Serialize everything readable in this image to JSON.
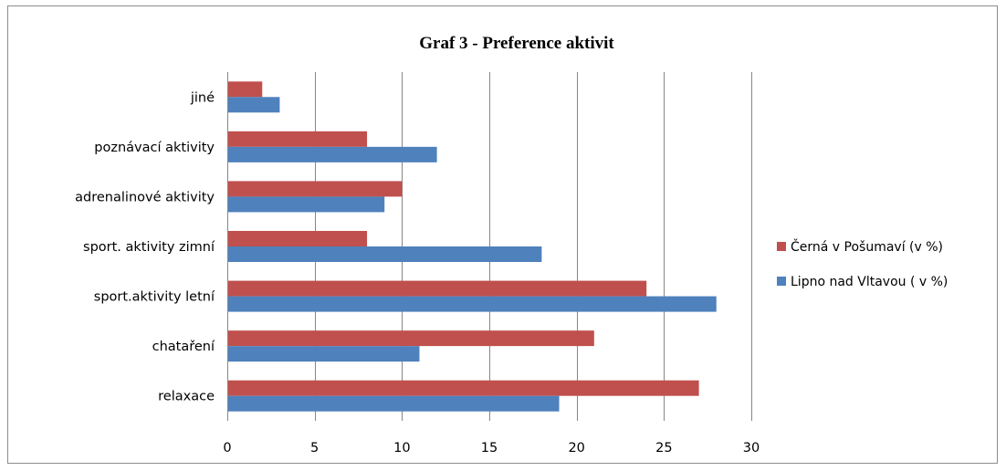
{
  "chart_data": {
    "type": "bar",
    "orientation": "horizontal",
    "title": "Graf 3 - Preference aktivit",
    "xlabel": "",
    "ylabel": "",
    "categories": [
      "relaxace",
      "chataření",
      "sport.aktivity letní",
      "sport. aktivity zimní",
      "adrenalinové aktivity",
      "poznávací aktivity",
      "jiné"
    ],
    "series": [
      {
        "name": "Lipno nad Vltavou  ( v %)",
        "color": "#4f81bd",
        "values": [
          19,
          11,
          28,
          18,
          9,
          12,
          3
        ]
      },
      {
        "name": "Černá v Pošumaví  (v %)",
        "color": "#c0504d",
        "values": [
          27,
          21,
          24,
          8,
          10,
          8,
          2
        ]
      }
    ],
    "xlim": [
      0,
      30
    ],
    "xticks": [
      "0",
      "5",
      "10",
      "15",
      "20",
      "25",
      "30"
    ],
    "grid": true,
    "legend_position": "right"
  }
}
